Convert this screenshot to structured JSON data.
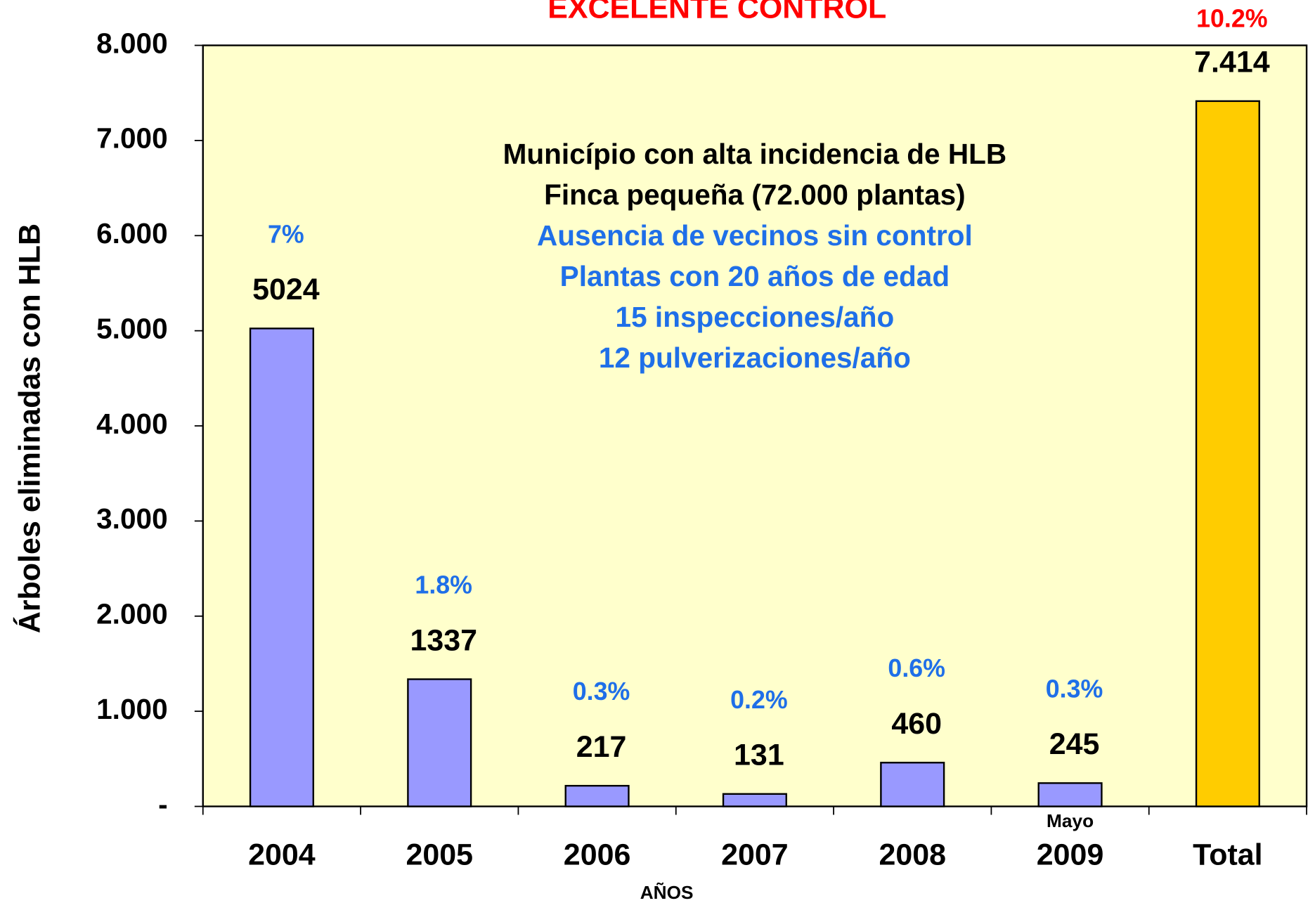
{
  "chart_data": {
    "type": "bar",
    "title": "EXCELENTE CONTROL",
    "title_color": "#ff0000",
    "ylabel": "Árboles eliminadas con HLB",
    "xlabel": "AÑOS",
    "categories": [
      "2004",
      "2005",
      "2006",
      "2007",
      "2008",
      "2009",
      "Total"
    ],
    "category_note": {
      "index": 5,
      "text": "Mayo"
    },
    "values": [
      5024,
      1337,
      217,
      131,
      460,
      245,
      7414
    ],
    "value_labels": [
      "5024",
      "1337",
      "217",
      "131",
      "460",
      "245",
      "7.414"
    ],
    "colors": [
      "#9999ff",
      "#9999ff",
      "#9999ff",
      "#9999ff",
      "#9999ff",
      "#9999ff",
      "#ffcc00"
    ],
    "percent_labels": [
      "7%",
      "1.8%",
      "0.3%",
      "0.2%",
      "0.6%",
      "0.3%",
      "10.2%"
    ],
    "percent_colors": [
      "#1f6fe8",
      "#1f6fe8",
      "#1f6fe8",
      "#1f6fe8",
      "#1f6fe8",
      "#1f6fe8",
      "#ff0000"
    ],
    "annotations": [
      {
        "text": "Município con alta incidencia de HLB",
        "color": "#000000"
      },
      {
        "text": "Finca pequeña (72.000 plantas)",
        "color": "#000000"
      },
      {
        "text": "Ausencia de vecinos sin control",
        "color": "#1f6fe8"
      },
      {
        "text": "Plantas con 20 años de edad",
        "color": "#1f6fe8"
      },
      {
        "text": "15 inspecciones/año",
        "color": "#1f6fe8"
      },
      {
        "text": "12 pulverizaciones/año",
        "color": "#1f6fe8"
      }
    ],
    "plot_background": "#ffffcc",
    "ylim": [
      0,
      8000
    ],
    "yticks": [
      {
        "value": 0,
        "label": "-"
      },
      {
        "value": 1000,
        "label": "1.000"
      },
      {
        "value": 2000,
        "label": "2.000"
      },
      {
        "value": 3000,
        "label": "3.000"
      },
      {
        "value": 4000,
        "label": "4.000"
      },
      {
        "value": 5000,
        "label": "5.000"
      },
      {
        "value": 6000,
        "label": "6.000"
      },
      {
        "value": 7000,
        "label": "7.000"
      },
      {
        "value": 8000,
        "label": "8.000"
      }
    ]
  }
}
